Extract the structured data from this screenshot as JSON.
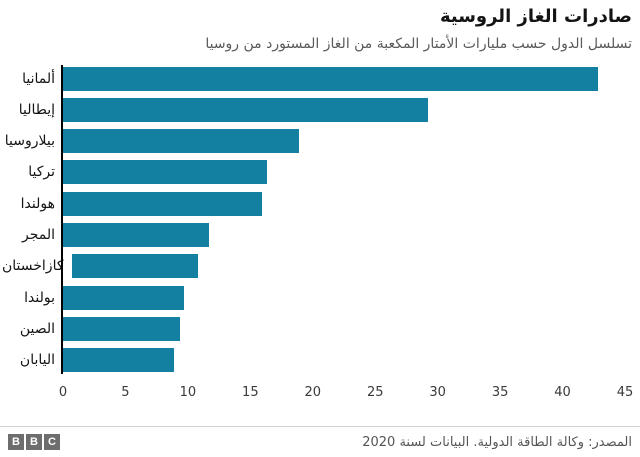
{
  "header": {
    "title": "صادرات الغاز الروسية",
    "subtitle": "تسلسل الدول حسب مليارات الأمتار المكعبة من الغاز المستورد من روسيا"
  },
  "chart_data": {
    "type": "bar",
    "orientation": "horizontal",
    "title": "صادرات الغاز الروسية",
    "subtitle": "تسلسل الدول حسب مليارات الأمتار المكعبة من الغاز المستورد من روسيا",
    "categories": [
      "ألمانيا",
      "إيطاليا",
      "بيلاروسيا",
      "تركيا",
      "هولندا",
      "المجر",
      "كازاخستان",
      "بولندا",
      "الصين",
      "اليابان"
    ],
    "values": [
      42.8,
      29.2,
      18.9,
      16.3,
      15.9,
      11.7,
      10.3,
      9.7,
      9.4,
      8.9
    ],
    "xlabel": "",
    "ylabel": "",
    "xlim": [
      0,
      45
    ],
    "x_ticks": [
      0,
      5,
      10,
      15,
      20,
      25,
      30,
      35,
      40,
      45
    ],
    "grid": false,
    "legend": false,
    "bar_color": "#1380A1",
    "axis_color": "#000000"
  },
  "footer": {
    "logo_letters": [
      "B",
      "B",
      "C"
    ],
    "source": "المصدر: وكالة الطاقة الدولية. البيانات لسنة 2020"
  },
  "colors": {
    "bar": "#1380A1",
    "title_text": "#141414",
    "subtitle_text": "#5a5a5a",
    "tick_text": "#3a3a3a",
    "logo_background": "#6d6d6d",
    "separator": "#d0d0d0"
  }
}
